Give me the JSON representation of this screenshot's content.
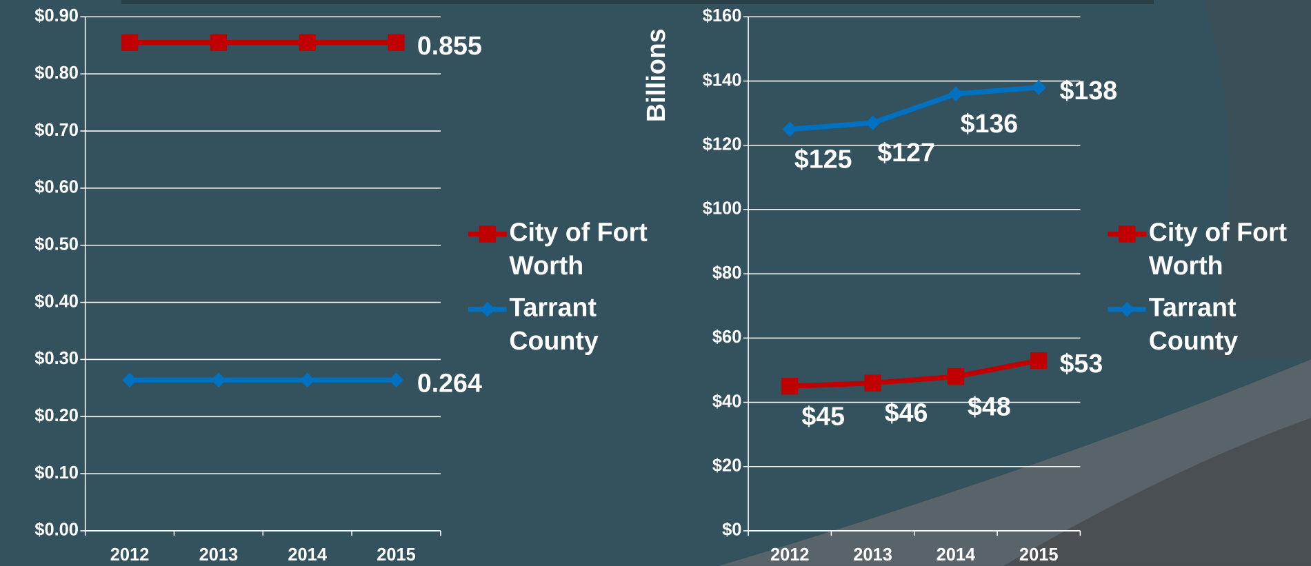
{
  "chart_data": [
    {
      "type": "line",
      "categories": [
        "2012",
        "2013",
        "2014",
        "2015"
      ],
      "series": [
        {
          "name": "City of Fort Worth",
          "color": "#c00000",
          "marker": "square",
          "values": [
            0.855,
            0.855,
            0.855,
            0.855
          ],
          "value_labels": [
            null,
            null,
            null,
            "0.855"
          ]
        },
        {
          "name": "Tarrant County",
          "color": "#0070c0",
          "marker": "diamond",
          "values": [
            0.264,
            0.264,
            0.264,
            0.264
          ],
          "value_labels": [
            null,
            null,
            null,
            "0.264"
          ]
        }
      ],
      "ylim": [
        0,
        0.9
      ],
      "yticks": [
        {
          "value": 0,
          "label": "$0.00"
        },
        {
          "value": 0.1,
          "label": "$0.10"
        },
        {
          "value": 0.2,
          "label": "$0.20"
        },
        {
          "value": 0.3,
          "label": "$0.30"
        },
        {
          "value": 0.4,
          "label": "$0.40"
        },
        {
          "value": 0.5,
          "label": "$0.50"
        },
        {
          "value": 0.6,
          "label": "$0.60"
        },
        {
          "value": 0.7,
          "label": "$0.70"
        },
        {
          "value": 0.8,
          "label": "$0.80"
        },
        {
          "value": 0.9,
          "label": "$0.90"
        }
      ],
      "grid": true,
      "legend": "right"
    },
    {
      "type": "line",
      "y_label": "Billions",
      "categories": [
        "2012",
        "2013",
        "2014",
        "2015"
      ],
      "series": [
        {
          "name": "City of Fort Worth",
          "color": "#c00000",
          "marker": "square",
          "values": [
            45,
            46,
            48,
            53
          ],
          "value_labels": [
            "$45",
            "$46",
            "$48",
            "$53"
          ]
        },
        {
          "name": "Tarrant County",
          "color": "#0070c0",
          "marker": "diamond",
          "values": [
            125,
            127,
            136,
            138
          ],
          "value_labels": [
            "$125",
            "$127",
            "$136",
            "$138"
          ]
        }
      ],
      "ylim": [
        0,
        160
      ],
      "yticks": [
        {
          "value": 0,
          "label": "$0"
        },
        {
          "value": 20,
          "label": "$20"
        },
        {
          "value": 40,
          "label": "$40"
        },
        {
          "value": 60,
          "label": "$60"
        },
        {
          "value": 80,
          "label": "$80"
        },
        {
          "value": 100,
          "label": "$100"
        },
        {
          "value": 120,
          "label": "$120"
        },
        {
          "value": 140,
          "label": "$140"
        },
        {
          "value": 160,
          "label": "$160"
        }
      ],
      "grid": true,
      "legend": "right"
    }
  ]
}
